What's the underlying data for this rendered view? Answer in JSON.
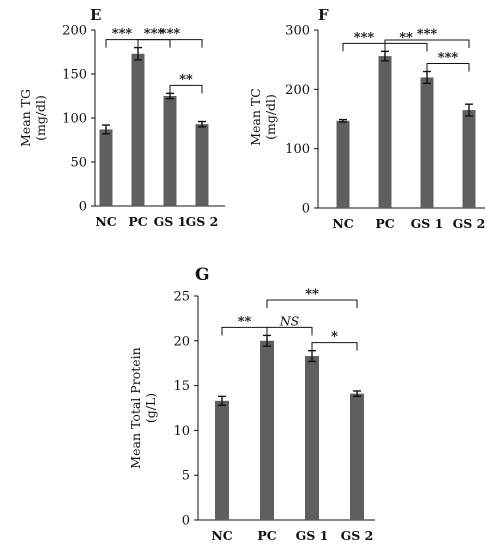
{
  "chart_data": [
    {
      "type": "bar",
      "panel_label": "E",
      "ylabel": "Mean TG\n(mg/dl)",
      "categories": [
        "NC",
        "PC",
        "GS 1",
        "GS 2"
      ],
      "values": [
        87,
        173,
        125,
        93
      ],
      "errors": [
        5,
        7,
        3,
        3
      ],
      "ylim": [
        0,
        200
      ],
      "yticks": [
        0,
        50,
        100,
        150,
        200
      ],
      "significance": [
        {
          "from": 0,
          "to": 1,
          "label": "***",
          "level": 1
        },
        {
          "from": 1,
          "to": 3,
          "label": "***",
          "level": 2
        },
        {
          "from": 1,
          "to": 2,
          "label": "***",
          "level": 1
        },
        {
          "from": 2,
          "to": 3,
          "label": "**",
          "level": 1
        }
      ]
    },
    {
      "type": "bar",
      "panel_label": "F",
      "ylabel": "Mean TC\n(mg/dl)",
      "categories": [
        "NC",
        "PC",
        "GS 1",
        "GS 2"
      ],
      "values": [
        147,
        256,
        220,
        165
      ],
      "errors": [
        2,
        8,
        10,
        10
      ],
      "ylim": [
        0,
        300
      ],
      "yticks": [
        0,
        100,
        200,
        300
      ],
      "significance": [
        {
          "from": 0,
          "to": 1,
          "label": "***",
          "level": 1
        },
        {
          "from": 1,
          "to": 3,
          "label": "***",
          "level": 2
        },
        {
          "from": 1,
          "to": 2,
          "label": "**",
          "level": 1
        },
        {
          "from": 2,
          "to": 3,
          "label": "***",
          "level": 1
        }
      ]
    },
    {
      "type": "bar",
      "panel_label": "G",
      "ylabel": "Mean Total Protein\n(g/L)",
      "categories": [
        "NC",
        "PC",
        "GS 1",
        "GS 2"
      ],
      "values": [
        13.3,
        20.0,
        18.3,
        14.1
      ],
      "errors": [
        0.5,
        0.6,
        0.6,
        0.3
      ],
      "ylim": [
        0,
        25
      ],
      "yticks": [
        0,
        5,
        10,
        15,
        20,
        25
      ],
      "significance": [
        {
          "from": 0,
          "to": 1,
          "label": "**",
          "level": 1
        },
        {
          "from": 1,
          "to": 3,
          "label": "**",
          "level": 2
        },
        {
          "from": 1,
          "to": 2,
          "label": "NS",
          "level": 1,
          "italic": true
        },
        {
          "from": 2,
          "to": 3,
          "label": "*",
          "level": 1
        }
      ]
    }
  ],
  "colors": {
    "bar": "#5f5f5f",
    "axis": "#111111"
  }
}
